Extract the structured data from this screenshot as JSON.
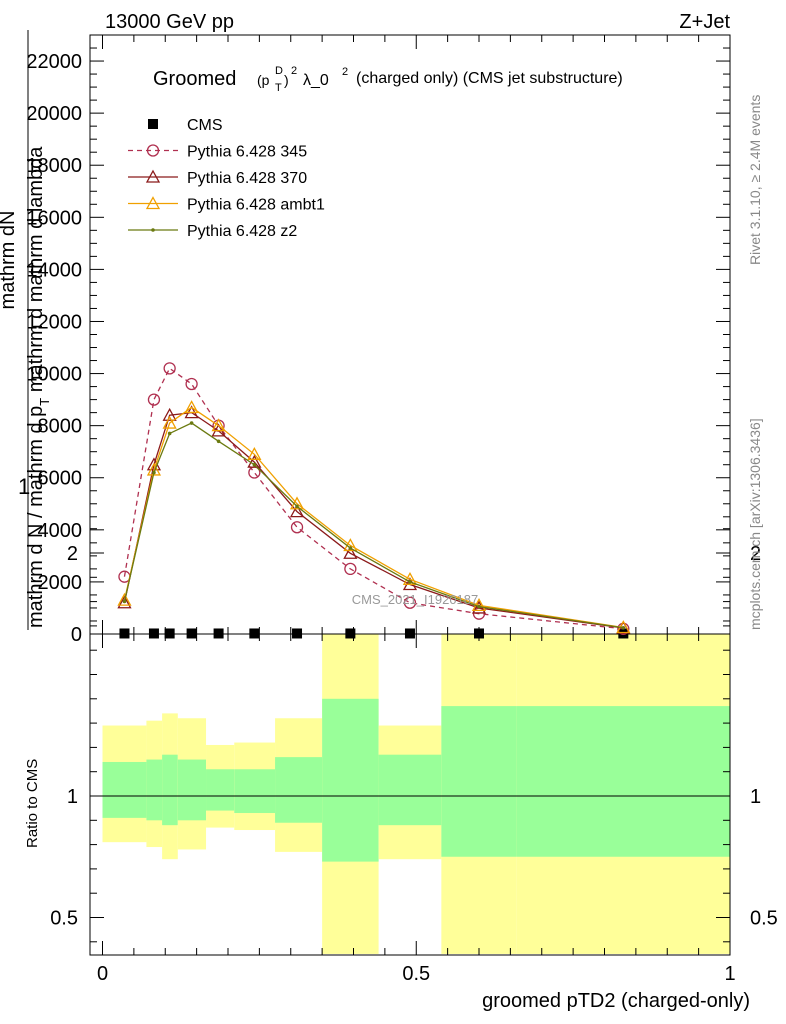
{
  "header": {
    "energy": "13000 GeV pp",
    "process": "Z+Jet"
  },
  "side_labels": {
    "rivet": "Rivet 3.1.10, ≥ 2.4M events",
    "mcplots": "mcplots.cern.ch [arXiv:1306.3436]"
  },
  "title": {
    "prefix": "Groomed",
    "p": "(p",
    "sup_d": "D",
    "sub_t": "T",
    "close": ")",
    "sup2": "2",
    "lambda": "λ_0",
    "lambda_sup": "2",
    "suffix": "(charged only) (CMS jet substructure)"
  },
  "watermark": "CMS_2021_I1920187",
  "ylabel_main": {
    "one": "1",
    "numer": "mathrm dN",
    "denom_a": "mathrm d N / mathrm d p",
    "denom_sub": "T",
    "denom_b": " mathrm d mathrm d lambda"
  },
  "ylabel_ratio": "Ratio to CMS",
  "xlabel": "groomed pTD2 (charged-only)",
  "legend": [
    {
      "label": "CMS",
      "color": "#000000",
      "marker": "square"
    },
    {
      "label": "Pythia 6.428 345",
      "color": "#b03050",
      "marker": "circle",
      "dash": true
    },
    {
      "label": "Pythia 6.428 370",
      "color": "#8b1a1a",
      "marker": "triangle"
    },
    {
      "label": "Pythia 6.428 ambt1",
      "color": "#f0a000",
      "marker": "triangle"
    },
    {
      "label": "Pythia 6.428 z2",
      "color": "#6b7a10",
      "marker": "dot"
    }
  ],
  "chart_data": {
    "type": "line",
    "xlim": [
      0,
      1
    ],
    "ylim_main": [
      0,
      23000
    ],
    "ylim_ratio": [
      0.35,
      2.25
    ],
    "x_ticks": [
      "0",
      "0.5",
      "1"
    ],
    "y_ticks_main": [
      "0",
      "2000",
      "4000",
      "6000",
      "8000",
      "10000",
      "12000",
      "14000",
      "16000",
      "18000",
      "20000",
      "22000"
    ],
    "y_ticks_ratio": [
      "0.5",
      "1",
      "2"
    ],
    "x": [
      0.035,
      0.082,
      0.107,
      0.142,
      0.185,
      0.242,
      0.31,
      0.395,
      0.49,
      0.6,
      0.83
    ],
    "bin_edges": [
      0,
      0.07,
      0.095,
      0.12,
      0.165,
      0.21,
      0.275,
      0.35,
      0.44,
      0.54,
      0.66,
      1.0
    ],
    "series": [
      {
        "name": "CMS",
        "values": [
          20,
          20,
          20,
          20,
          20,
          20,
          20,
          20,
          20,
          20,
          20
        ]
      },
      {
        "name": "Pythia 6.428 345",
        "values": [
          2200,
          9000,
          10200,
          9600,
          8000,
          6200,
          4100,
          2500,
          1200,
          780,
          200
        ]
      },
      {
        "name": "Pythia 6.428 370",
        "values": [
          1200,
          6500,
          8400,
          8500,
          7800,
          6600,
          4700,
          3100,
          1900,
          1000,
          230
        ]
      },
      {
        "name": "Pythia 6.428 ambt1",
        "values": [
          1300,
          6300,
          8100,
          8700,
          8000,
          6900,
          5000,
          3400,
          2100,
          1100,
          250
        ]
      },
      {
        "name": "Pythia 6.428 z2",
        "values": [
          1250,
          6200,
          7700,
          8100,
          7400,
          6500,
          4900,
          3300,
          2000,
          1050,
          240
        ]
      }
    ],
    "ratio_bands": {
      "stat_low": [
        0.91,
        0.9,
        0.88,
        0.9,
        0.94,
        0.93,
        0.89,
        0.73,
        0.88,
        0.75,
        0.75
      ],
      "stat_high": [
        1.14,
        1.15,
        1.17,
        1.15,
        1.11,
        1.11,
        1.16,
        1.4,
        1.17,
        1.37,
        1.37
      ],
      "total_low": [
        0.81,
        0.79,
        0.74,
        0.78,
        0.87,
        0.86,
        0.77,
        0.35,
        0.74,
        0.35,
        0.35
      ],
      "total_high": [
        1.29,
        1.31,
        1.34,
        1.32,
        1.21,
        1.22,
        1.32,
        1.71,
        1.29,
        1.67,
        1.67
      ]
    }
  }
}
